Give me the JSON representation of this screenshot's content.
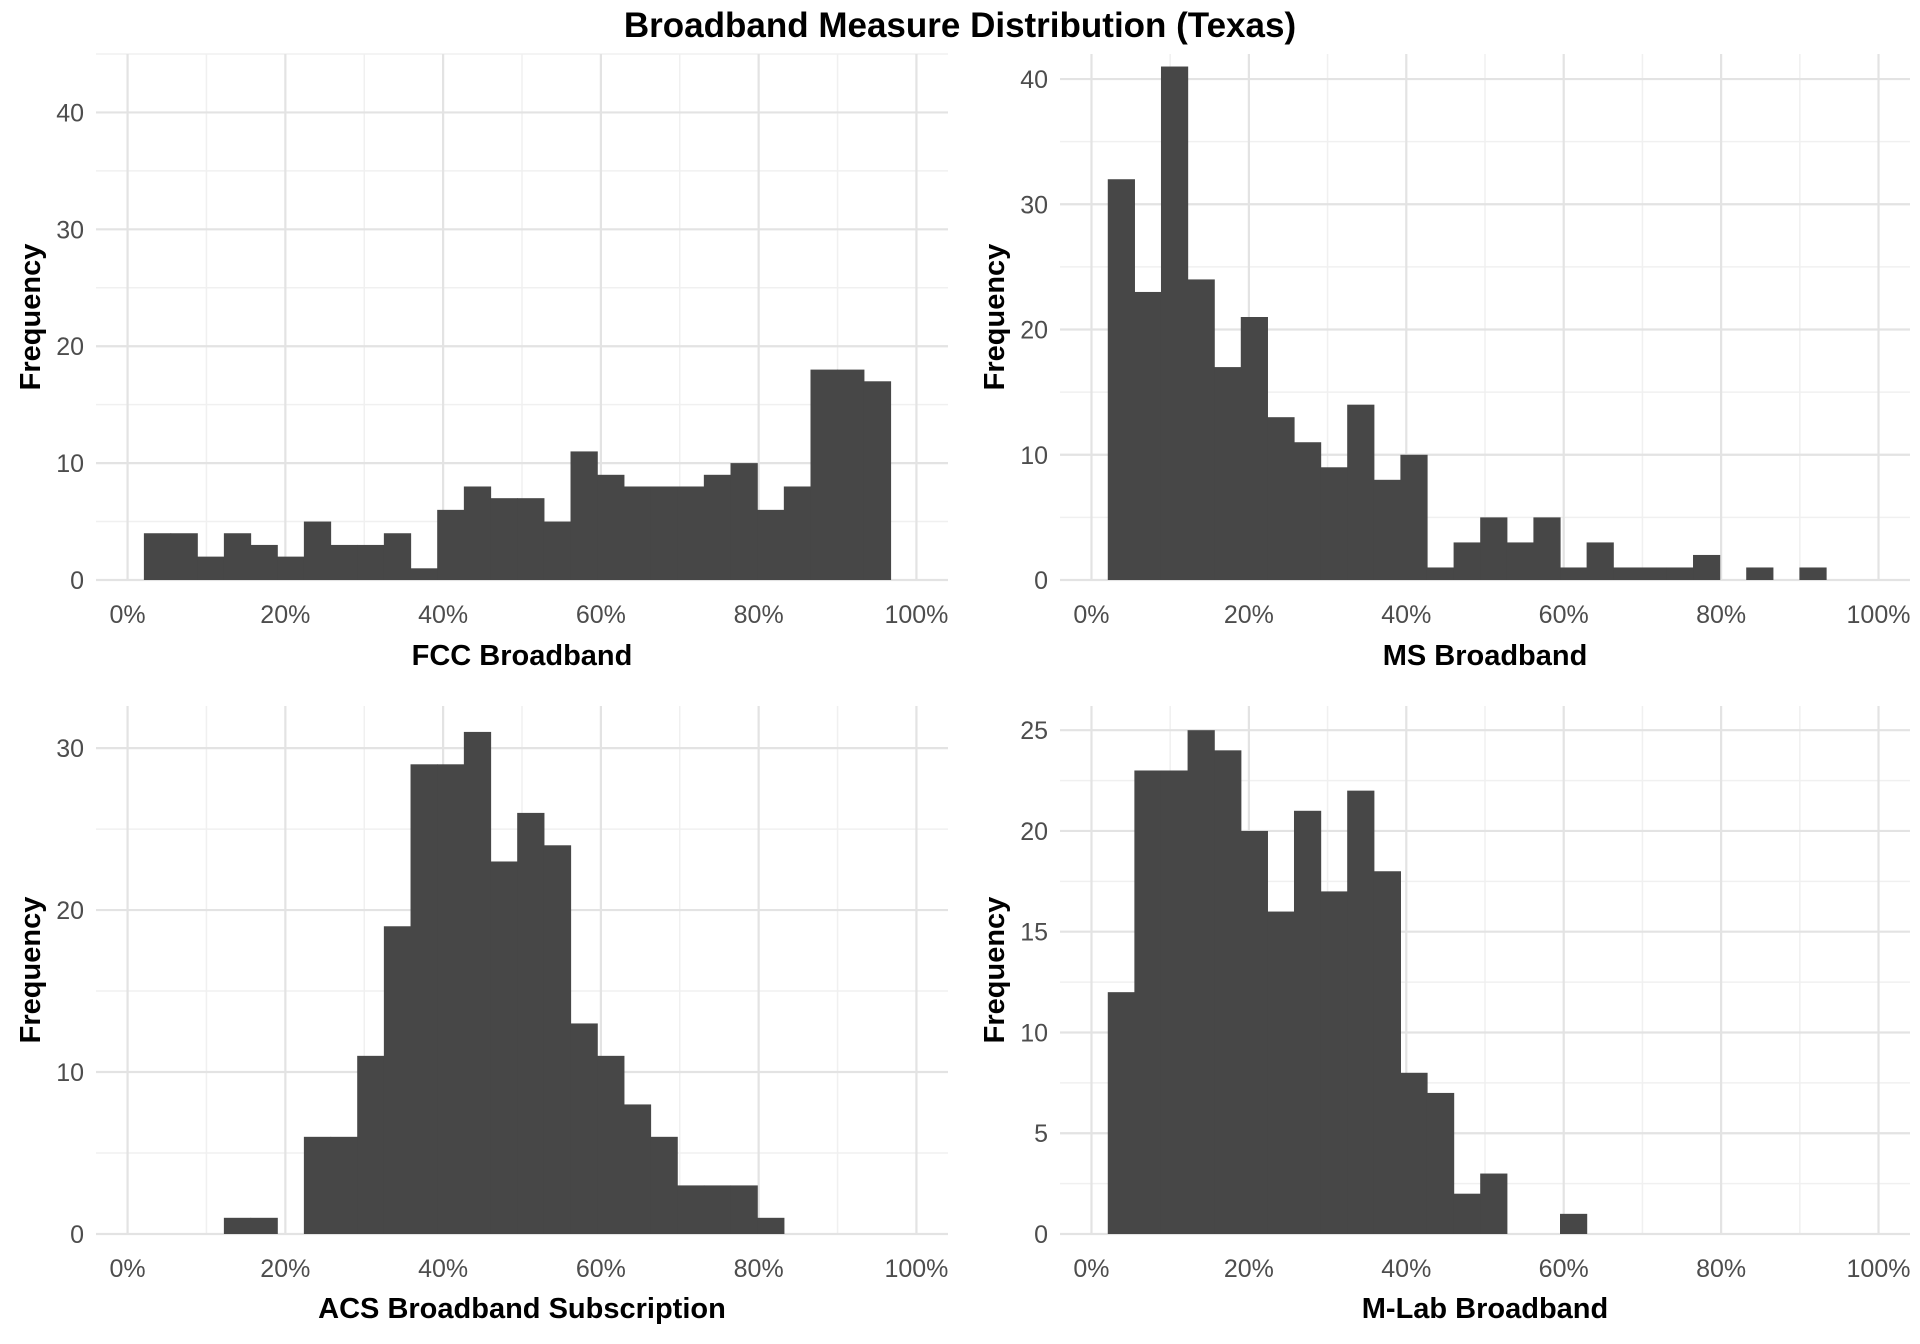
{
  "title": "Broadband Measure Distribution (Texas)",
  "colors": {
    "bar": "#474747",
    "grid_major": "#e3e3e3",
    "grid_minor": "#f0f0f0",
    "tick_text": "#4d4d4d"
  },
  "chart_data": [
    {
      "type": "bar",
      "xlabel": "FCC Broadband",
      "ylabel": "Frequency",
      "x_ticks": [
        "0%",
        "20%",
        "40%",
        "60%",
        "80%",
        "100%"
      ],
      "xlim": [
        -0.04,
        1.04
      ],
      "ylim": [
        0,
        45
      ],
      "y_ticks": [
        0,
        10,
        20,
        30,
        40
      ],
      "bin_start": 0.0207,
      "bin_width": 0.0338,
      "values": [
        4,
        4,
        2,
        4,
        3,
        2,
        5,
        3,
        3,
        4,
        1,
        6,
        8,
        7,
        7,
        5,
        11,
        9,
        8,
        8,
        8,
        9,
        10,
        6,
        8,
        18,
        18,
        17
      ]
    },
    {
      "type": "bar",
      "xlabel": "MS Broadband",
      "ylabel": "Frequency",
      "x_ticks": [
        "0%",
        "20%",
        "40%",
        "60%",
        "80%",
        "100%"
      ],
      "xlim": [
        -0.04,
        1.04
      ],
      "ylim": [
        0,
        42
      ],
      "y_ticks": [
        0,
        10,
        20,
        30,
        40
      ],
      "bin_start": 0.0207,
      "bin_width": 0.0338,
      "values": [
        32,
        23,
        41,
        24,
        17,
        21,
        13,
        11,
        9,
        14,
        8,
        10,
        1,
        3,
        5,
        3,
        5,
        1,
        3,
        1,
        1,
        1,
        2,
        0,
        1,
        0,
        1,
        0
      ]
    },
    {
      "type": "bar",
      "xlabel": "ACS Broadband Subscription",
      "ylabel": "Frequency",
      "x_ticks": [
        "0%",
        "20%",
        "40%",
        "60%",
        "80%",
        "100%"
      ],
      "xlim": [
        -0.04,
        1.04
      ],
      "ylim": [
        0,
        32.6
      ],
      "y_ticks": [
        0,
        10,
        20,
        30
      ],
      "bin_start": 0.0207,
      "bin_width": 0.0338,
      "values": [
        0,
        0,
        0,
        1,
        1,
        0,
        6,
        6,
        11,
        19,
        29,
        29,
        31,
        23,
        26,
        24,
        13,
        11,
        8,
        6,
        3,
        3,
        3,
        1,
        0,
        0,
        0,
        0
      ]
    },
    {
      "type": "bar",
      "xlabel": "M-Lab Broadband",
      "ylabel": "Frequency",
      "x_ticks": [
        "0%",
        "20%",
        "40%",
        "60%",
        "80%",
        "100%"
      ],
      "xlim": [
        -0.04,
        1.04
      ],
      "ylim": [
        0,
        26.2
      ],
      "y_ticks": [
        0,
        5,
        10,
        15,
        20,
        25
      ],
      "bin_start": 0.0207,
      "bin_width": 0.0338,
      "values": [
        12,
        23,
        23,
        25,
        24,
        20,
        16,
        21,
        17,
        22,
        18,
        8,
        7,
        2,
        3,
        0,
        0,
        1,
        0,
        0,
        0,
        0,
        0,
        0,
        0,
        0,
        0,
        0
      ]
    }
  ]
}
